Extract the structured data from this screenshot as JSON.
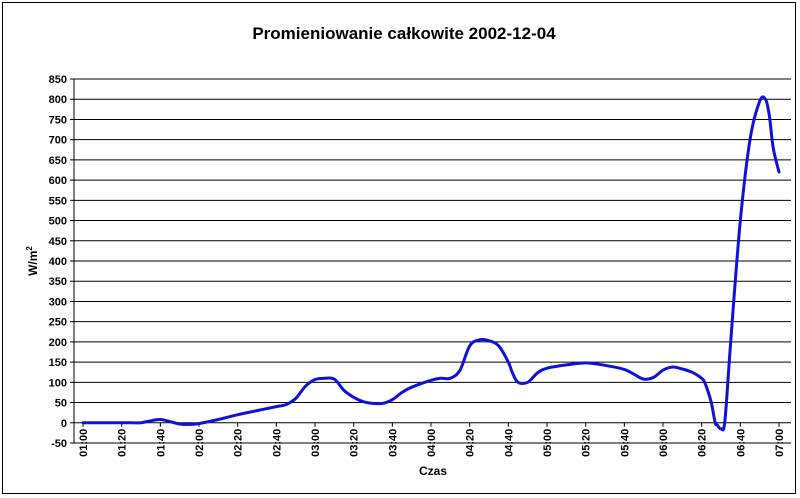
{
  "chart_data": {
    "type": "line",
    "title": "Promieniowanie całkowite 2002-12-04",
    "xlabel": "Czas",
    "ylabel": "W/m²",
    "ylabel_base": "W/m",
    "ylabel_sup": "2",
    "ylim": [
      -50,
      850
    ],
    "yticks": [
      "-50",
      "0",
      "50",
      "100",
      "150",
      "200",
      "250",
      "300",
      "350",
      "400",
      "450",
      "500",
      "550",
      "600",
      "650",
      "700",
      "750",
      "800",
      "850"
    ],
    "xticks": [
      "01:00",
      "01:20",
      "01:40",
      "02:00",
      "02:20",
      "02:40",
      "03:00",
      "03:20",
      "03:40",
      "04:00",
      "04:20",
      "04:40",
      "05:00",
      "05:20",
      "05:40",
      "06:00",
      "06:20",
      "06:40",
      "07:00"
    ],
    "grid": "horizontal",
    "legend": "none",
    "series_color": "#1010dd",
    "x": [
      "01:00",
      "01:10",
      "01:20",
      "01:25",
      "01:30",
      "01:35",
      "01:40",
      "01:45",
      "01:50",
      "01:55",
      "02:00",
      "02:05",
      "02:10",
      "02:20",
      "02:30",
      "02:40",
      "02:45",
      "02:50",
      "02:55",
      "03:00",
      "03:05",
      "03:10",
      "03:15",
      "03:20",
      "03:25",
      "03:30",
      "03:35",
      "03:40",
      "03:45",
      "03:50",
      "04:00",
      "04:05",
      "04:10",
      "04:15",
      "04:20",
      "04:25",
      "04:30",
      "04:35",
      "04:40",
      "04:42",
      "04:45",
      "04:50",
      "04:55",
      "05:00",
      "05:10",
      "05:20",
      "05:30",
      "05:40",
      "05:45",
      "05:50",
      "05:55",
      "06:00",
      "06:05",
      "06:10",
      "06:15",
      "06:20",
      "06:22",
      "06:25",
      "06:27",
      "06:28",
      "06:30",
      "06:32",
      "06:35",
      "06:40",
      "06:45",
      "06:50",
      "06:53",
      "06:55",
      "06:57",
      "07:00"
    ],
    "values": [
      0,
      0,
      0,
      0,
      0,
      5,
      8,
      3,
      -3,
      -4,
      -2,
      3,
      8,
      20,
      30,
      40,
      45,
      60,
      90,
      107,
      110,
      108,
      80,
      63,
      52,
      48,
      48,
      57,
      75,
      88,
      105,
      110,
      110,
      130,
      190,
      205,
      203,
      190,
      150,
      125,
      100,
      100,
      123,
      135,
      143,
      148,
      142,
      132,
      120,
      108,
      112,
      130,
      138,
      133,
      125,
      110,
      95,
      50,
      0,
      -5,
      -15,
      5,
      200,
      500,
      700,
      795,
      800,
      760,
      680,
      620
    ]
  }
}
